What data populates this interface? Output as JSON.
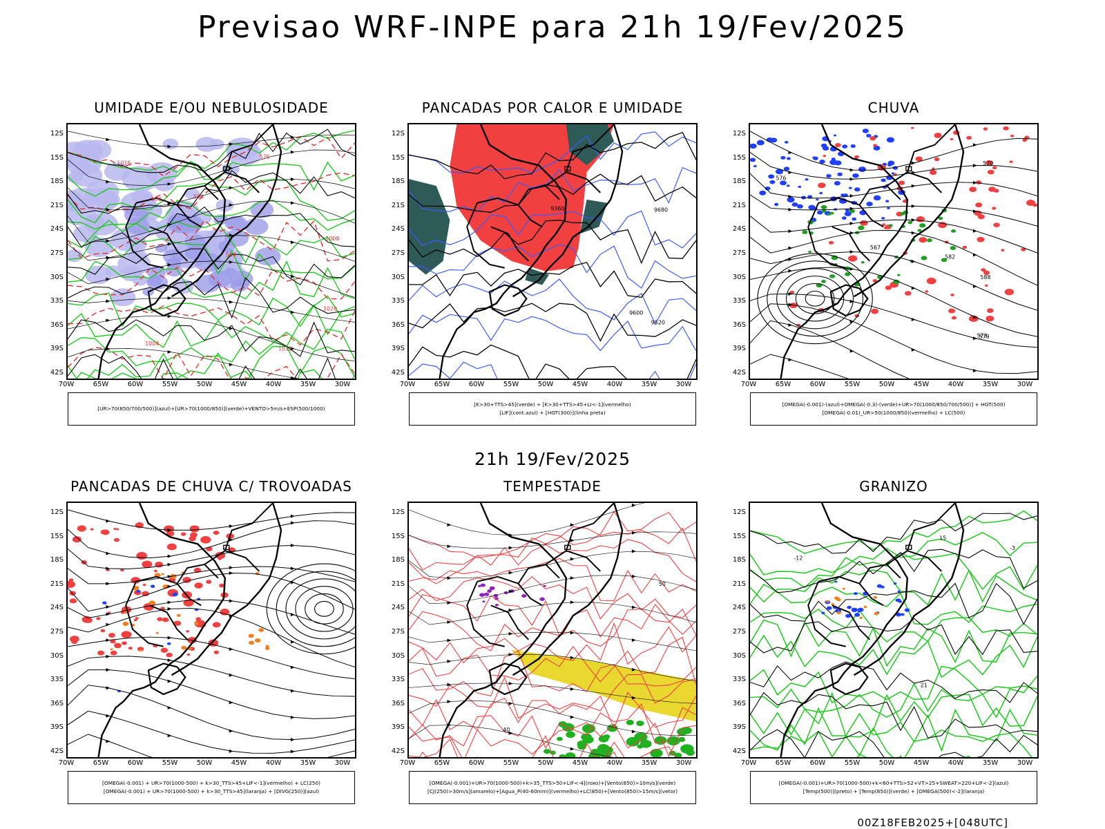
{
  "header": {
    "title": "Previsao WRF-INPE  para 21h 19/Fev/2025",
    "mid_label": "21h 19/Fev/2025",
    "footer": "00Z18FEB2025+[048UTC]"
  },
  "axes": {
    "lat_ticks": [
      "12S",
      "15S",
      "18S",
      "21S",
      "24S",
      "27S",
      "30S",
      "33S",
      "36S",
      "39S",
      "42S"
    ],
    "lon_ticks": [
      "70W",
      "65W",
      "60W",
      "55W",
      "50W",
      "45W",
      "40W",
      "35W",
      "30W"
    ]
  },
  "panels": [
    {
      "title": "UMIDADE E/OU NEBULOSIDADE",
      "legend": [
        "[UR>70(850/700/500)](azul)+[UR>70(1000/850)](verde)+VENTO>5m/s+ESP(500/1000)"
      ],
      "contour_labels": [
        "1012",
        "1016",
        "1020",
        "1008",
        "1004",
        "576",
        "570",
        "564",
        "558"
      ]
    },
    {
      "title": "PANCADAS POR CALOR E UMIDADE",
      "legend": [
        "[K>30+TTS>45](verde) + [K>30+TTS>45+LI<-1](vermelho)",
        "[LIF](cont.azul) + [HGT(300)](linha preta)"
      ],
      "contour_labels": [
        "9600",
        "9680",
        "9520",
        "9360"
      ]
    },
    {
      "title": "CHUVA",
      "legend": [
        "[OMEGA(-0.001)-(azul)+OMEGA(-0.3)-(verde)+UR>70(1000/850/700/500)] + HGT(500)",
        "[OMEGA(-0.01)_UR>50(1000/850)(vermelho) + LC(500)"
      ],
      "contour_labels": [
        "588",
        "582",
        "579",
        "576",
        "573",
        "570",
        "567"
      ]
    },
    {
      "title": "PANCADAS DE CHUVA C/ TROVOADAS",
      "legend": [
        "[OMEGA(-0.001) + UR>70(1000-500) + k>30_TTS>45+LIF<-1](vermelho) + LC(250)",
        "[OMEGA(-0.001) + UR>70(1000-500) + k>30_TTS>45](laranja) + [DIVG(250)](azul)"
      ],
      "contour_labels": []
    },
    {
      "title": "TEMPESTADE",
      "legend": [
        "[OMEGA(-0.001)+UR>70(1000-500)+k>35_TTS>50+LIF<-4](roxo)+[Vento(850)>10m/s](verde)",
        "[CJ(250)>30m/s](amarelo)+[Agua_P(40-60mm)](vermelho)+LC(850)+[Vento(850)>15m/s](vetor)"
      ],
      "contour_labels": [
        "50",
        "40"
      ]
    },
    {
      "title": "GRANIZO",
      "legend": [
        "[OMEGA(-0.001)+UR>70(1000-500)+k<60+TTS>52+VT>25+SWEAT>220+LIF<-2](azul)",
        "[Temp(500)](preto) + [Temp(850)](verde) + [OMEGA(500)<-2](laranja)"
      ],
      "contour_labels": [
        "-3",
        "-12",
        "15",
        "21"
      ]
    }
  ]
}
